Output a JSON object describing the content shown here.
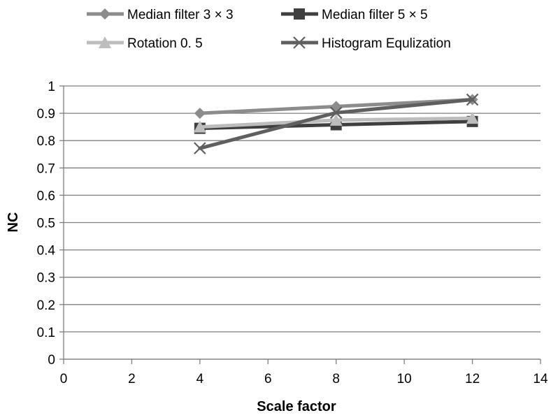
{
  "chart_data": {
    "type": "line",
    "title": "",
    "xlabel": "Scale factor",
    "ylabel": "NC",
    "xlim": [
      0,
      14
    ],
    "ylim": [
      0,
      1
    ],
    "xticks": [
      0,
      2,
      4,
      6,
      8,
      10,
      12,
      14
    ],
    "yticks": [
      0,
      0.1,
      0.2,
      0.3,
      0.4,
      0.5,
      0.6,
      0.7,
      0.8,
      0.9,
      1
    ],
    "grid": "horizontal",
    "legend_position": "top",
    "x": [
      4,
      8,
      12
    ],
    "series": [
      {
        "name": "Median filter 3 × 3",
        "values": [
          0.9,
          0.925,
          0.95
        ],
        "color": "#8c8c8c",
        "marker": "diamond"
      },
      {
        "name": "Median  filter 5 × 5",
        "values": [
          0.845,
          0.858,
          0.87
        ],
        "color": "#3f3f3f",
        "marker": "square"
      },
      {
        "name": "Rotation 0. 5",
        "values": [
          0.85,
          0.875,
          0.882
        ],
        "color": "#bdbdbd",
        "marker": "triangle"
      },
      {
        "name": "Histogram Equlization",
        "values": [
          0.772,
          0.902,
          0.95
        ],
        "color": "#5f5f5f",
        "marker": "x"
      }
    ]
  }
}
